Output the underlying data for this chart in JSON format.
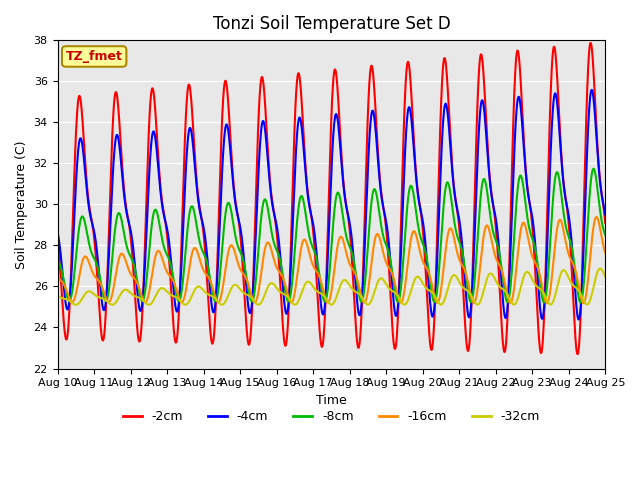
{
  "title": "Tonzi Soil Temperature Set D",
  "xlabel": "Time",
  "ylabel": "Soil Temperature (C)",
  "annotation": "TZ_fmet",
  "ylim": [
    22,
    38
  ],
  "xtick_labels": [
    "Aug 10",
    "Aug 11",
    "Aug 12",
    "Aug 13",
    "Aug 14",
    "Aug 15",
    "Aug 16",
    "Aug 17",
    "Aug 18",
    "Aug 19",
    "Aug 20",
    "Aug 21",
    "Aug 22",
    "Aug 23",
    "Aug 24",
    "Aug 25"
  ],
  "legend_labels": [
    "-2cm",
    "-4cm",
    "-8cm",
    "-16cm",
    "-32cm"
  ],
  "line_colors": [
    "#FF0000",
    "#0000FF",
    "#00BB00",
    "#FF8800",
    "#CCCC00"
  ],
  "line_widths": [
    1.5,
    1.5,
    1.5,
    1.5,
    1.5
  ],
  "bg_color": "#E8E8E8",
  "annotation_fg": "#CC0000",
  "annotation_bg": "#FFFF99",
  "annotation_border": "#AA8800",
  "title_fontsize": 12,
  "axis_label_fontsize": 9,
  "tick_fontsize": 8,
  "legend_fontsize": 9
}
